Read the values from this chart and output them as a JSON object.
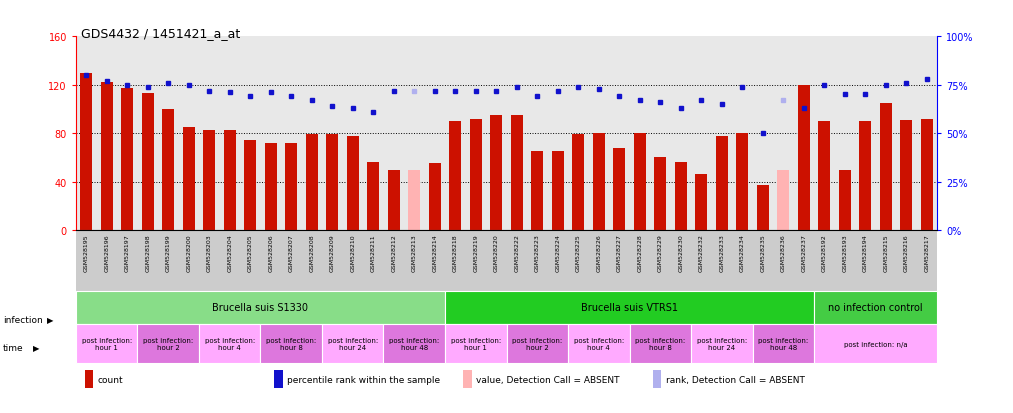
{
  "title": "GDS4432 / 1451421_a_at",
  "samples": [
    "GSM528195",
    "GSM528196",
    "GSM528197",
    "GSM528198",
    "GSM528199",
    "GSM528200",
    "GSM528203",
    "GSM528204",
    "GSM528205",
    "GSM528206",
    "GSM528207",
    "GSM528208",
    "GSM528209",
    "GSM528210",
    "GSM528211",
    "GSM528212",
    "GSM528213",
    "GSM528214",
    "GSM528218",
    "GSM528219",
    "GSM528220",
    "GSM528222",
    "GSM528223",
    "GSM528224",
    "GSM528225",
    "GSM528226",
    "GSM528227",
    "GSM528228",
    "GSM528229",
    "GSM528230",
    "GSM528232",
    "GSM528233",
    "GSM528234",
    "GSM528235",
    "GSM528236",
    "GSM528237",
    "GSM528192",
    "GSM528193",
    "GSM528194",
    "GSM528215",
    "GSM528216",
    "GSM528217"
  ],
  "values": [
    130,
    122,
    117,
    113,
    100,
    85,
    83,
    83,
    74,
    72,
    72,
    79,
    79,
    78,
    56,
    50,
    50,
    55,
    90,
    92,
    95,
    95,
    65,
    65,
    79,
    80,
    68,
    80,
    60,
    56,
    46,
    78,
    80,
    37,
    50,
    120,
    90,
    50,
    90,
    105,
    91,
    92
  ],
  "absent_mask": [
    false,
    false,
    false,
    false,
    false,
    false,
    false,
    false,
    false,
    false,
    false,
    false,
    false,
    false,
    false,
    false,
    true,
    false,
    false,
    false,
    false,
    false,
    false,
    false,
    false,
    false,
    false,
    false,
    false,
    false,
    false,
    false,
    false,
    false,
    true,
    false,
    false,
    false,
    false,
    false,
    false,
    false
  ],
  "percentile_ranks": [
    80,
    77,
    75,
    74,
    76,
    75,
    72,
    71,
    69,
    71,
    69,
    67,
    64,
    63,
    61,
    72,
    72,
    72,
    72,
    72,
    72,
    74,
    69,
    72,
    74,
    73,
    69,
    67,
    66,
    63,
    67,
    65,
    74,
    50,
    67,
    63,
    75,
    70,
    70,
    75,
    76,
    78
  ],
  "rank_absent_mask": [
    false,
    false,
    false,
    false,
    false,
    false,
    false,
    false,
    false,
    false,
    false,
    false,
    false,
    false,
    false,
    false,
    true,
    false,
    false,
    false,
    false,
    false,
    false,
    false,
    false,
    false,
    false,
    false,
    false,
    false,
    false,
    false,
    false,
    false,
    true,
    false,
    false,
    false,
    false,
    false,
    false,
    false
  ],
  "ylim_left": [
    0,
    160
  ],
  "ylim_right": [
    0,
    100
  ],
  "yticks_left": [
    0,
    40,
    80,
    120,
    160
  ],
  "ytick_labels_left": [
    "0",
    "40",
    "80",
    "120",
    "160"
  ],
  "ytick_labels_right": [
    "0%",
    "25%",
    "50%",
    "75%",
    "100%"
  ],
  "yticks_right": [
    0,
    25,
    50,
    75,
    100
  ],
  "bar_color_present": "#cc1100",
  "bar_color_absent": "#ffb3b3",
  "marker_color_present": "#1111cc",
  "marker_color_absent": "#b0b0ee",
  "infection_groups": [
    {
      "label": "Brucella suis S1330",
      "start": 0,
      "end": 18,
      "color": "#88dd88"
    },
    {
      "label": "Brucella suis VTRS1",
      "start": 18,
      "end": 36,
      "color": "#22cc22"
    },
    {
      "label": "no infection control",
      "start": 36,
      "end": 42,
      "color": "#44cc44"
    }
  ],
  "time_groups": [
    {
      "label": "post infection:\nhour 1",
      "start": 0,
      "end": 3
    },
    {
      "label": "post infection:\nhour 2",
      "start": 3,
      "end": 6
    },
    {
      "label": "post infection:\nhour 4",
      "start": 6,
      "end": 9
    },
    {
      "label": "post infection:\nhour 8",
      "start": 9,
      "end": 12
    },
    {
      "label": "post infection:\nhour 24",
      "start": 12,
      "end": 15
    },
    {
      "label": "post infection:\nhour 48",
      "start": 15,
      "end": 18
    },
    {
      "label": "post infection:\nhour 1",
      "start": 18,
      "end": 21
    },
    {
      "label": "post infection:\nhour 2",
      "start": 21,
      "end": 24
    },
    {
      "label": "post infection:\nhour 4",
      "start": 24,
      "end": 27
    },
    {
      "label": "post infection:\nhour 8",
      "start": 27,
      "end": 30
    },
    {
      "label": "post infection:\nhour 24",
      "start": 30,
      "end": 33
    },
    {
      "label": "post infection:\nhour 48",
      "start": 33,
      "end": 36
    },
    {
      "label": "post infection: n/a",
      "start": 36,
      "end": 42
    }
  ],
  "time_colors": [
    "#ffaaff",
    "#dd77dd",
    "#ffaaff",
    "#dd77dd",
    "#ffaaff",
    "#dd77dd",
    "#ffaaff",
    "#dd77dd",
    "#ffaaff",
    "#dd77dd",
    "#ffaaff",
    "#dd77dd",
    "#ffaaff"
  ],
  "legend_items": [
    {
      "label": "count",
      "color": "#cc1100"
    },
    {
      "label": "percentile rank within the sample",
      "color": "#1111cc"
    },
    {
      "label": "value, Detection Call = ABSENT",
      "color": "#ffb3b3"
    },
    {
      "label": "rank, Detection Call = ABSENT",
      "color": "#b0b0ee"
    }
  ],
  "background_color": "#ffffff",
  "plot_bg_color": "#e8e8e8"
}
